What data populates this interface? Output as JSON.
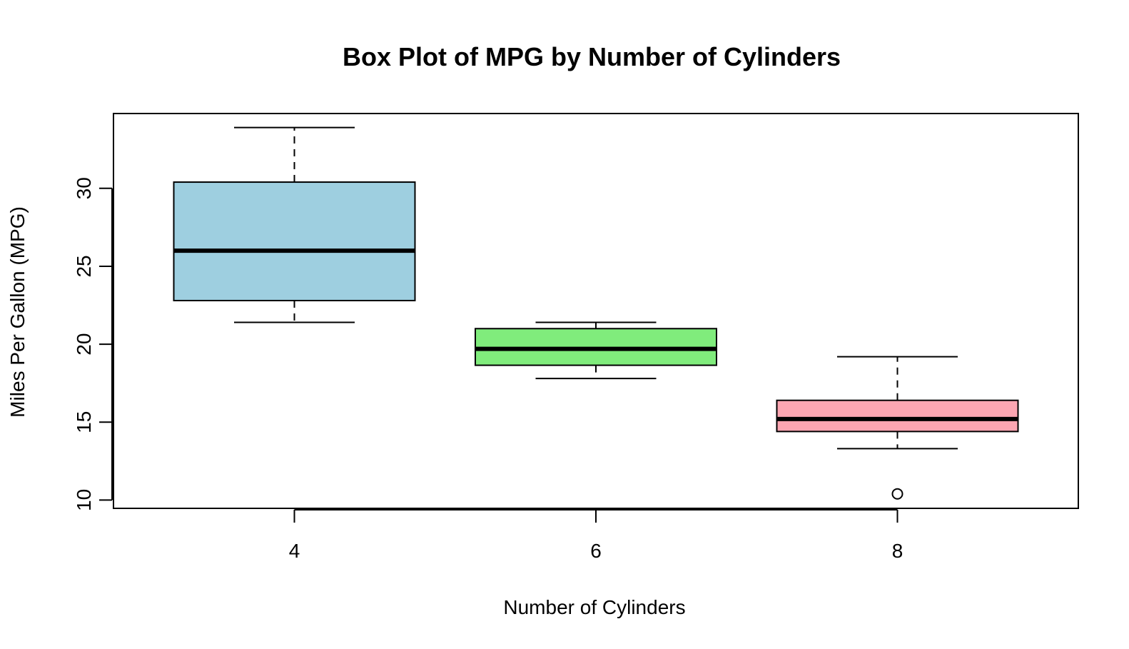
{
  "chart_data": {
    "type": "box",
    "title": "Box Plot of MPG by Number of Cylinders",
    "xlabel": "Number of Cylinders",
    "ylabel": "Miles Per Gallon (MPG)",
    "categories": [
      "4",
      "6",
      "8"
    ],
    "ylim": [
      9.47,
      34.8
    ],
    "yticks": [
      "10",
      "15",
      "20",
      "25",
      "30"
    ],
    "grid": false,
    "legend": "none",
    "boxes": [
      {
        "category": "4",
        "color": "#9ecfe0",
        "whisker_low": 21.4,
        "q1": 22.8,
        "median": 26.0,
        "q3": 30.4,
        "whisker_high": 33.9,
        "outliers": []
      },
      {
        "category": "6",
        "color": "#80ec7c",
        "whisker_low": 17.8,
        "q1": 18.65,
        "median": 19.7,
        "q3": 21.0,
        "whisker_high": 21.4,
        "outliers": []
      },
      {
        "category": "8",
        "color": "#fca6b2",
        "whisker_low": 13.3,
        "q1": 14.4,
        "median": 15.2,
        "q3": 16.4,
        "whisker_high": 19.2,
        "outliers": [
          10.4
        ]
      }
    ]
  }
}
